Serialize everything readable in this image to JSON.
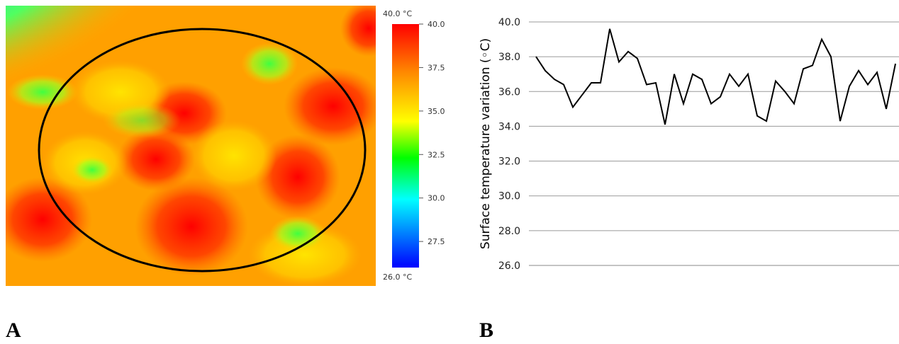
{
  "panels": {
    "a": {
      "letter": "A"
    },
    "b": {
      "letter": "B"
    }
  },
  "thermal_image": {
    "scale_max_label": "40.0 °C",
    "scale_min_label": "26.0 °C",
    "scale_ticks": [
      "40.0",
      "37.5",
      "35.0",
      "32.5",
      "30.0",
      "27.5"
    ],
    "scale_range": [
      26.0,
      40.0
    ],
    "colors": [
      "#ff0000",
      "#ff8a00",
      "#ffff00",
      "#00ff00",
      "#00ffff",
      "#0000ff"
    ],
    "marker_color": "#000000"
  },
  "chart_data": {
    "type": "line",
    "title": "",
    "xlabel": "",
    "ylabel": "Surface temperature variation (◦C)",
    "ylim": [
      26.0,
      40.0
    ],
    "yticks": [
      "40.0",
      "38.0",
      "36.0",
      "34.0",
      "32.0",
      "30.0",
      "28.0",
      "26.0"
    ],
    "grid": true,
    "line_color": "#000000",
    "series": [
      {
        "values": [
          38.0,
          37.2,
          36.7,
          36.4,
          35.1,
          35.8,
          36.5,
          36.5,
          39.6,
          37.7,
          38.3,
          37.9,
          36.4,
          36.5,
          34.1,
          37.0,
          35.3,
          37.0,
          36.7,
          35.3,
          35.7,
          37.0,
          36.3,
          37.0,
          34.6,
          34.3,
          36.6,
          36.0,
          35.3,
          37.3,
          37.5,
          39.0,
          38.0,
          34.3,
          36.3,
          37.2,
          36.4,
          37.1,
          35.0,
          37.6
        ]
      }
    ]
  }
}
